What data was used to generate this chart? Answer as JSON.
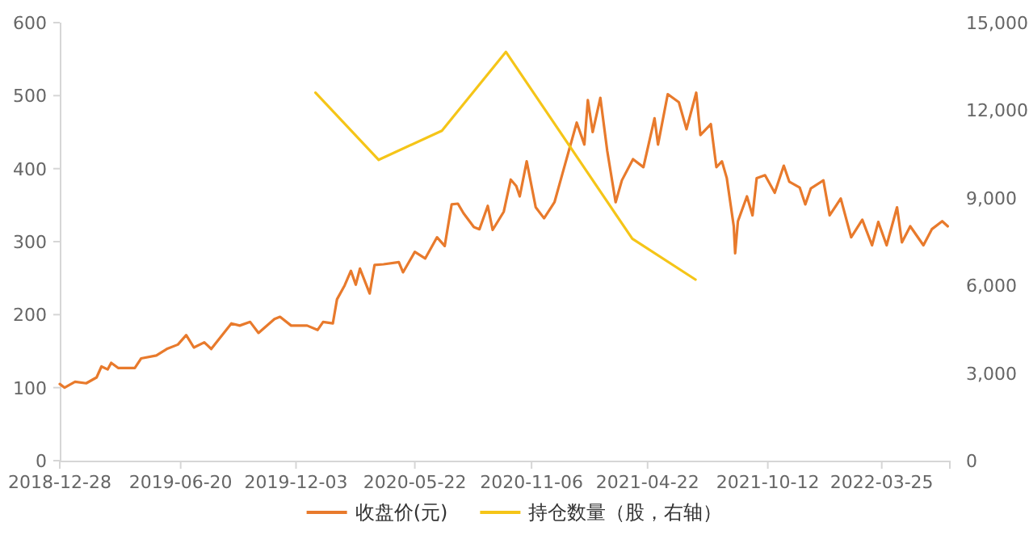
{
  "chart_data": {
    "type": "line",
    "legend": "bottom",
    "marker": "none",
    "line_style": "solid",
    "xlim": [
      "2018-12-28",
      "2022-07-01"
    ],
    "xticks": [
      "2018-12-28",
      "2019-06-20",
      "2019-12-03",
      "2020-05-22",
      "2020-11-06",
      "2021-04-22",
      "2021-10-12",
      "2022-03-25"
    ],
    "ylim": [
      0,
      600
    ],
    "yticks": [
      0,
      100,
      200,
      300,
      400,
      500,
      600
    ],
    "y2lim": [
      0,
      15000
    ],
    "y2ticks": [
      0,
      {
        "value": 3000,
        "label": "3,000"
      },
      {
        "value": 6000,
        "label": "6,000"
      },
      {
        "value": 9000,
        "label": "9,000"
      },
      {
        "value": 12000,
        "label": "12,000"
      },
      {
        "value": 15000,
        "label": "15,000"
      }
    ],
    "series": [
      {
        "name": "收盘价(元)",
        "color": "#e87a2c",
        "x": [
          "2018-12-28",
          "2019-01-04",
          "2019-01-19",
          "2019-02-04",
          "2019-02-19",
          "2019-02-26",
          "2019-03-07",
          "2019-03-12",
          "2019-03-22",
          "2019-04-15",
          "2019-04-24",
          "2019-05-16",
          "2019-05-31",
          "2019-06-16",
          "2019-06-28",
          "2019-07-09",
          "2019-07-24",
          "2019-08-03",
          "2019-09-01",
          "2019-09-13",
          "2019-09-28",
          "2019-10-10",
          "2019-11-02",
          "2019-11-10",
          "2019-11-26",
          "2019-12-19",
          "2020-01-03",
          "2020-01-11",
          "2020-01-25",
          "2020-01-31",
          "2020-02-11",
          "2020-02-20",
          "2020-02-27",
          "2020-03-04",
          "2020-03-18",
          "2020-03-25",
          "2020-04-07",
          "2020-04-29",
          "2020-05-05",
          "2020-05-22",
          "2020-06-06",
          "2020-06-23",
          "2020-07-04",
          "2020-07-14",
          "2020-07-23",
          "2020-07-31",
          "2020-08-15",
          "2020-08-23",
          "2020-09-04",
          "2020-09-11",
          "2020-09-27",
          "2020-10-07",
          "2020-10-15",
          "2020-10-20",
          "2020-10-30",
          "2020-11-12",
          "2020-11-24",
          "2020-12-09",
          "2020-12-21",
          "2021-01-10",
          "2021-01-21",
          "2021-01-26",
          "2021-02-02",
          "2021-02-13",
          "2021-02-23",
          "2021-03-07",
          "2021-03-16",
          "2021-04-01",
          "2021-04-16",
          "2021-05-02",
          "2021-05-07",
          "2021-05-21",
          "2021-06-06",
          "2021-06-17",
          "2021-07-01",
          "2021-07-07",
          "2021-07-22",
          "2021-07-30",
          "2021-08-07",
          "2021-08-14",
          "2021-08-24",
          "2021-08-26",
          "2021-08-30",
          "2021-09-12",
          "2021-09-20",
          "2021-09-26",
          "2021-10-08",
          "2021-10-22",
          "2021-11-04",
          "2021-11-12",
          "2021-11-27",
          "2021-12-05",
          "2021-12-13",
          "2021-12-31",
          "2022-01-09",
          "2022-01-25",
          "2022-02-09",
          "2022-02-25",
          "2022-03-11",
          "2022-03-20",
          "2022-04-01",
          "2022-04-16",
          "2022-04-23",
          "2022-05-05",
          "2022-05-24",
          "2022-06-05",
          "2022-06-20",
          "2022-06-28"
        ],
        "values": [
          105,
          100,
          108,
          106,
          114,
          129,
          125,
          134,
          127,
          127,
          140,
          144,
          153,
          159,
          172,
          155,
          162,
          153,
          188,
          185,
          190,
          175,
          194,
          197,
          185,
          185,
          179,
          190,
          188,
          221,
          240,
          260,
          241,
          263,
          229,
          268,
          269,
          272,
          258,
          286,
          277,
          306,
          294,
          351,
          352,
          339,
          320,
          317,
          349,
          316,
          341,
          385,
          376,
          362,
          410,
          347,
          332,
          354,
          395,
          463,
          433,
          494,
          450,
          497,
          424,
          354,
          384,
          413,
          402,
          469,
          433,
          502,
          491,
          454,
          504,
          446,
          461,
          402,
          410,
          387,
          321,
          284,
          328,
          362,
          336,
          387,
          391,
          367,
          404,
          382,
          374,
          351,
          373,
          384,
          336,
          359,
          306,
          330,
          295,
          327,
          295,
          347,
          299,
          321,
          295,
          317,
          328,
          321
        ]
      },
      {
        "name": "持仓数量（股，右轴）",
        "color": "#f5c518",
        "axis": "y2",
        "x": [
          "2019-12-31",
          "2020-03-31",
          "2020-06-30",
          "2020-09-30",
          "2021-03-31",
          "2021-06-30"
        ],
        "values": [
          12600,
          10300,
          11300,
          14000,
          7600,
          6200
        ]
      }
    ]
  }
}
